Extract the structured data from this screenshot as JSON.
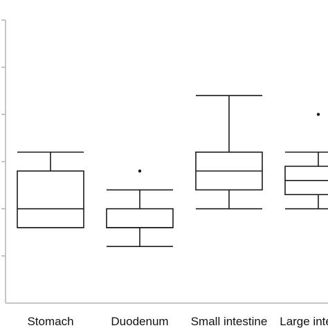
{
  "chart_data": {
    "type": "box",
    "title": "",
    "xlabel": "",
    "ylabel": "",
    "ylim": [
      0,
      6
    ],
    "y_ticks": [
      1,
      2,
      3,
      4,
      5,
      6
    ],
    "y_tick_labels_visible": false,
    "grid": false,
    "categories": [
      "Stomach",
      "Duodenum",
      "Small intestine",
      "Large intestine"
    ],
    "boxes": [
      {
        "name": "Stomach",
        "whisker_low": 1.6,
        "q1": 1.6,
        "median": 2.0,
        "q3": 2.8,
        "whisker_high": 3.2,
        "outliers": []
      },
      {
        "name": "Duodenum",
        "whisker_low": 1.2,
        "q1": 1.6,
        "median": 1.6,
        "q3": 2.0,
        "whisker_high": 2.4,
        "outliers": [
          2.8
        ]
      },
      {
        "name": "Small intestine",
        "whisker_low": 2.0,
        "q1": 2.4,
        "median": 2.8,
        "q3": 3.2,
        "whisker_high": 4.4,
        "outliers": []
      },
      {
        "name": "Large intestine",
        "whisker_low": 2.0,
        "q1": 2.3,
        "median": 2.6,
        "q3": 2.9,
        "whisker_high": 3.2,
        "outliers": [
          4.0
        ]
      }
    ],
    "colors": {
      "axis": "#b3b3b3",
      "box": "#1a1a1a",
      "text": "#111111"
    }
  }
}
